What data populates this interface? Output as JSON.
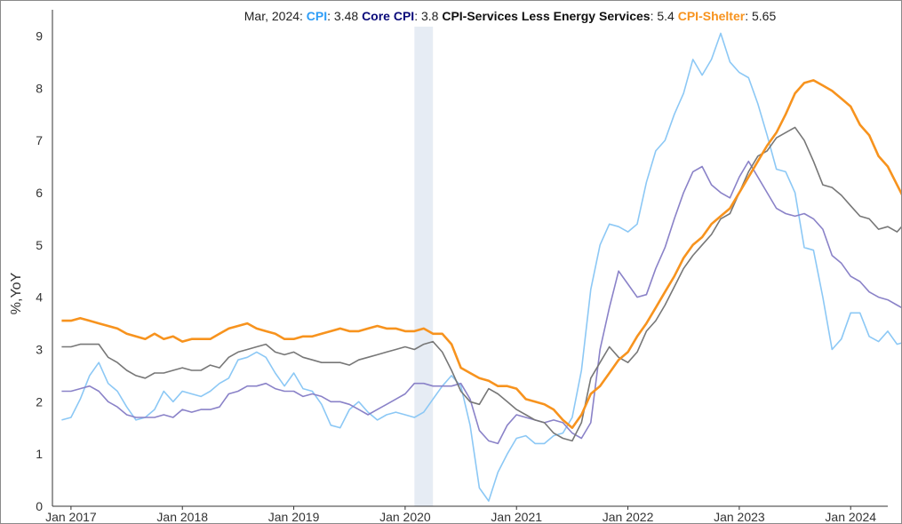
{
  "chart_data": {
    "type": "line",
    "title": "",
    "xlabel": "",
    "ylabel": "%,YoY",
    "ylim": [
      0,
      9.5
    ],
    "yticks": [
      0,
      1,
      2,
      3,
      4,
      5,
      6,
      7,
      8,
      9
    ],
    "xlim": [
      "2016-11",
      "2024-05"
    ],
    "xticks": [
      {
        "date": "2017-01",
        "label": "Jan 2017"
      },
      {
        "date": "2018-01",
        "label": "Jan 2018"
      },
      {
        "date": "2019-01",
        "label": "Jan 2019"
      },
      {
        "date": "2020-01",
        "label": "Jan 2020"
      },
      {
        "date": "2021-01",
        "label": "Jan 2021"
      },
      {
        "date": "2022-01",
        "label": "Jan 2022"
      },
      {
        "date": "2023-01",
        "label": "Jan 2023"
      },
      {
        "date": "2024-01",
        "label": "Jan 2024"
      }
    ],
    "x_start": "2016-12",
    "x_end": "2024-03",
    "shaded_regions": [
      {
        "from": "2020-02",
        "to": "2020-04"
      }
    ],
    "grid": false,
    "hover_header": {
      "date_label": "Mar, 2024",
      "items": [
        {
          "label": "CPI",
          "value": "3.48",
          "color": "#2e9df7"
        },
        {
          "label": "Core CPI",
          "value": "3.8",
          "color": "#0a0a7a"
        },
        {
          "label": "CPI-Services Less Energy Services",
          "value": "5.4",
          "color": "#111111"
        },
        {
          "label": "CPI-Shelter",
          "value": "5.65",
          "color": "#f7931e"
        }
      ]
    },
    "series": [
      {
        "name": "CPI",
        "color": "#8cc8f5",
        "end_color": "#2e9df7",
        "values": [
          1.65,
          1.7,
          2.05,
          2.5,
          2.75,
          2.35,
          2.2,
          1.9,
          1.65,
          1.7,
          1.85,
          2.2,
          2.0,
          2.2,
          2.15,
          2.1,
          2.2,
          2.35,
          2.45,
          2.8,
          2.85,
          2.95,
          2.85,
          2.55,
          2.3,
          2.55,
          2.25,
          2.2,
          1.95,
          1.55,
          1.5,
          1.85,
          2.0,
          1.8,
          1.65,
          1.75,
          1.8,
          1.75,
          1.7,
          1.8,
          2.05,
          2.3,
          2.5,
          2.3,
          1.55,
          0.35,
          0.1,
          0.65,
          1.0,
          1.3,
          1.35,
          1.2,
          1.2,
          1.35,
          1.4,
          1.7,
          2.6,
          4.15,
          5.0,
          5.4,
          5.35,
          5.25,
          5.4,
          6.2,
          6.8,
          7.0,
          7.5,
          7.9,
          8.55,
          8.25,
          8.55,
          9.05,
          8.5,
          8.3,
          8.2,
          7.7,
          7.1,
          6.45,
          6.4,
          6.0,
          4.95,
          4.9,
          4.0,
          3.0,
          3.2,
          3.7,
          3.7,
          3.25,
          3.15,
          3.35,
          3.1,
          3.15,
          3.48
        ]
      },
      {
        "name": "Core CPI",
        "color": "#8a82c8",
        "end_color": "#0a0a7a",
        "values": [
          2.2,
          2.2,
          2.25,
          2.3,
          2.2,
          2.0,
          1.9,
          1.75,
          1.7,
          1.7,
          1.7,
          1.75,
          1.7,
          1.85,
          1.8,
          1.85,
          1.85,
          1.9,
          2.15,
          2.2,
          2.3,
          2.3,
          2.35,
          2.25,
          2.2,
          2.2,
          2.1,
          2.15,
          2.1,
          2.0,
          2.0,
          1.95,
          1.85,
          1.75,
          1.85,
          1.95,
          2.05,
          2.15,
          2.35,
          2.35,
          2.3,
          2.3,
          2.3,
          2.35,
          2.05,
          1.45,
          1.25,
          1.2,
          1.55,
          1.75,
          1.7,
          1.65,
          1.6,
          1.65,
          1.6,
          1.4,
          1.3,
          1.6,
          3.0,
          3.8,
          4.5,
          4.25,
          4.0,
          4.05,
          4.55,
          4.95,
          5.5,
          6.0,
          6.4,
          6.5,
          6.15,
          6.0,
          5.9,
          6.3,
          6.6,
          6.3,
          6.0,
          5.7,
          5.6,
          5.55,
          5.6,
          5.5,
          5.3,
          4.8,
          4.65,
          4.4,
          4.3,
          4.1,
          4.0,
          3.95,
          3.85,
          3.75,
          3.8
        ]
      },
      {
        "name": "CPI-Services Less Energy Services",
        "color": "#777777",
        "end_color": "#111111",
        "values": [
          3.05,
          3.05,
          3.1,
          3.1,
          3.1,
          2.85,
          2.75,
          2.6,
          2.5,
          2.45,
          2.55,
          2.55,
          2.6,
          2.65,
          2.6,
          2.6,
          2.7,
          2.65,
          2.85,
          2.95,
          3.0,
          3.05,
          3.1,
          2.95,
          2.9,
          2.95,
          2.85,
          2.8,
          2.75,
          2.75,
          2.75,
          2.7,
          2.8,
          2.85,
          2.9,
          2.95,
          3.0,
          3.05,
          3.0,
          3.1,
          3.15,
          2.95,
          2.6,
          2.2,
          2.0,
          1.95,
          2.25,
          2.15,
          2.0,
          1.85,
          1.75,
          1.65,
          1.6,
          1.4,
          1.3,
          1.25,
          1.6,
          2.45,
          2.75,
          3.05,
          2.85,
          2.75,
          2.95,
          3.35,
          3.55,
          3.85,
          4.2,
          4.55,
          4.8,
          5.0,
          5.2,
          5.5,
          5.6,
          6.0,
          6.4,
          6.7,
          6.8,
          7.05,
          7.15,
          7.25,
          7.0,
          6.6,
          6.15,
          6.1,
          5.95,
          5.75,
          5.55,
          5.5,
          5.3,
          5.35,
          5.25,
          5.45,
          5.4
        ]
      },
      {
        "name": "CPI-Shelter",
        "color": "#f7931e",
        "end_color": "#f7931e",
        "values": [
          3.55,
          3.55,
          3.6,
          3.55,
          3.5,
          3.45,
          3.4,
          3.3,
          3.25,
          3.2,
          3.3,
          3.2,
          3.25,
          3.15,
          3.2,
          3.2,
          3.2,
          3.3,
          3.4,
          3.45,
          3.5,
          3.4,
          3.35,
          3.3,
          3.2,
          3.2,
          3.25,
          3.25,
          3.3,
          3.35,
          3.4,
          3.35,
          3.35,
          3.4,
          3.45,
          3.4,
          3.4,
          3.35,
          3.35,
          3.4,
          3.3,
          3.3,
          3.1,
          2.65,
          2.55,
          2.45,
          2.4,
          2.3,
          2.3,
          2.25,
          2.05,
          2.0,
          1.95,
          1.85,
          1.65,
          1.5,
          1.75,
          2.15,
          2.3,
          2.55,
          2.8,
          2.95,
          3.25,
          3.5,
          3.8,
          4.1,
          4.4,
          4.75,
          5.0,
          5.15,
          5.4,
          5.55,
          5.7,
          6.0,
          6.3,
          6.6,
          6.9,
          7.15,
          7.5,
          7.9,
          8.1,
          8.15,
          8.05,
          7.95,
          7.8,
          7.65,
          7.3,
          7.1,
          6.7,
          6.5,
          6.15,
          5.8,
          5.65
        ]
      }
    ]
  }
}
